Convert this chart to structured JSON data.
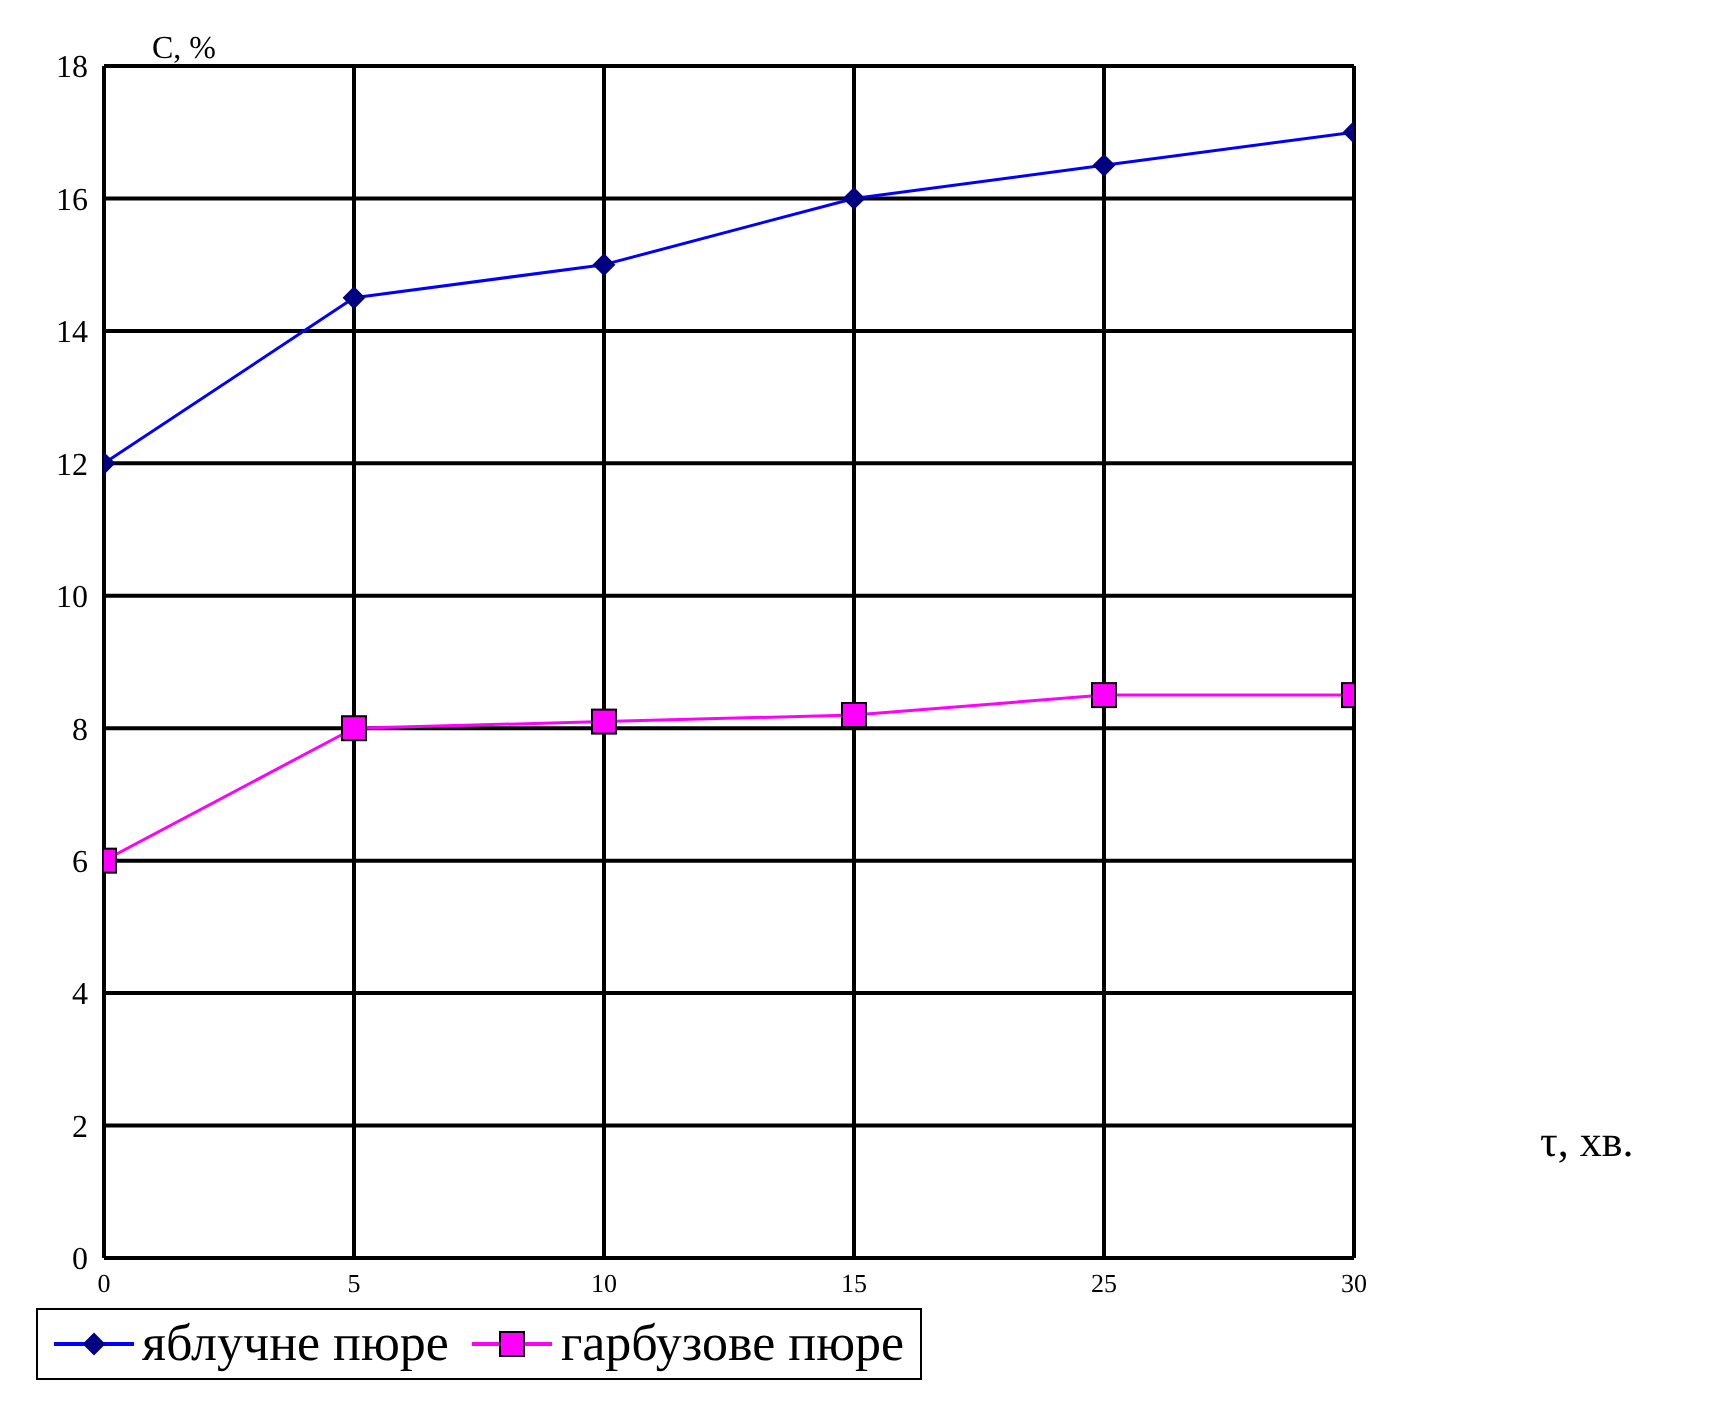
{
  "chart_data": {
    "type": "line",
    "xlabel": "τ, хв.",
    "ylabel": "С, %",
    "categories": [
      "0",
      "5",
      "10",
      "15",
      "25",
      "30"
    ],
    "series": [
      {
        "name": "яблучне пюре",
        "color": "#0000ff",
        "marker": "diamond",
        "values": [
          12,
          14.5,
          15,
          16,
          16.5,
          17
        ]
      },
      {
        "name": "гарбузове пюре",
        "color": "#ff00ff",
        "marker": "square",
        "values": [
          6,
          8,
          8.1,
          8.2,
          8.5,
          8.5
        ]
      }
    ],
    "ylim": [
      0,
      18
    ],
    "yticks": [
      0,
      2,
      4,
      6,
      8,
      10,
      12,
      14,
      16,
      18
    ],
    "grid": true,
    "legend": "bottom"
  }
}
